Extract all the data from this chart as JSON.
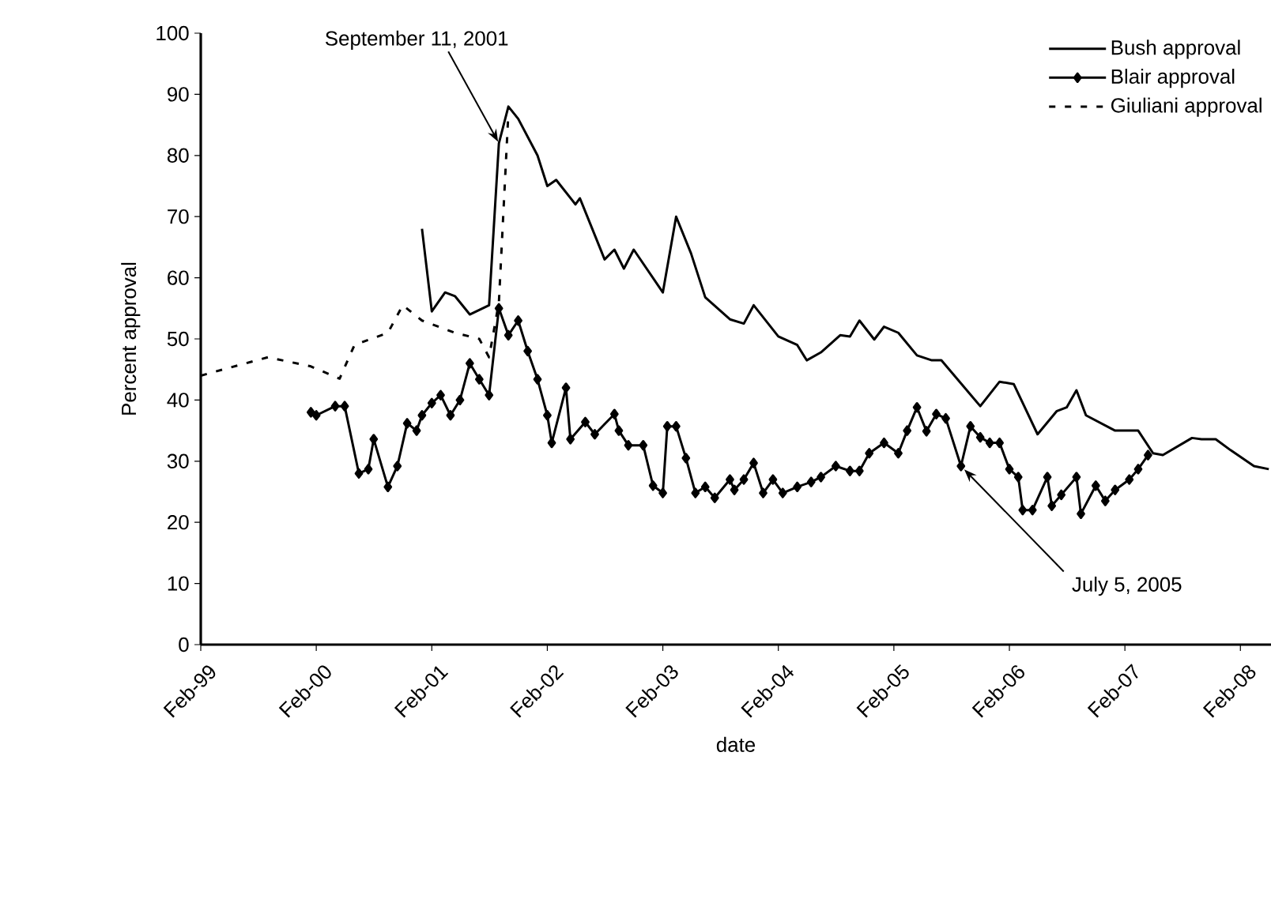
{
  "chart_data": {
    "type": "line",
    "xlabel": "date",
    "ylabel": "Percent approval",
    "xlim": [
      "1999-02-01",
      "2008-05-08"
    ],
    "ylim": [
      0,
      100
    ],
    "xticks": [
      {
        "value": "1999-02-01",
        "label": "Feb-99"
      },
      {
        "value": "2000-02-01",
        "label": "Feb-00"
      },
      {
        "value": "2001-02-01",
        "label": "Feb-01"
      },
      {
        "value": "2002-02-01",
        "label": "Feb-02"
      },
      {
        "value": "2003-02-01",
        "label": "Feb-03"
      },
      {
        "value": "2004-02-01",
        "label": "Feb-04"
      },
      {
        "value": "2005-02-01",
        "label": "Feb-05"
      },
      {
        "value": "2006-02-01",
        "label": "Feb-06"
      },
      {
        "value": "2007-02-01",
        "label": "Feb-07"
      },
      {
        "value": "2008-02-01",
        "label": "Feb-08"
      }
    ],
    "yticks": [
      0,
      10,
      20,
      30,
      40,
      50,
      60,
      70,
      80,
      90,
      100
    ],
    "legend": "top right",
    "series": [
      {
        "name": "Bush approval",
        "color": "#000000",
        "line_style": "solid",
        "marker": "none",
        "x": [
          "2001-01-01",
          "2001-02-01",
          "2001-03-15",
          "2001-04-15",
          "2001-06-01",
          "2001-08-01",
          "2001-09-01",
          "2001-10-01",
          "2001-11-01",
          "2002-01-01",
          "2002-02-01",
          "2002-03-01",
          "2002-05-01",
          "2002-05-15",
          "2002-08-01",
          "2002-09-01",
          "2002-10-01",
          "2002-11-01",
          "2003-02-01",
          "2003-03-15",
          "2003-05-01",
          "2003-06-15",
          "2003-09-01",
          "2003-10-15",
          "2003-11-15",
          "2004-02-01",
          "2004-04-01",
          "2004-05-01",
          "2004-06-15",
          "2004-08-15",
          "2004-09-15",
          "2004-10-15",
          "2004-12-01",
          "2005-01-01",
          "2005-02-15",
          "2005-04-15",
          "2005-06-01",
          "2005-07-01",
          "2005-11-01",
          "2006-01-01",
          "2006-02-15",
          "2006-05-01",
          "2006-07-01",
          "2006-08-01",
          "2006-09-01",
          "2006-10-01",
          "2007-01-01",
          "2007-03-15",
          "2007-05-01",
          "2007-06-01",
          "2007-09-01",
          "2007-10-01",
          "2007-11-15",
          "2008-01-01",
          "2008-03-15",
          "2008-05-01"
        ],
        "values": [
          68,
          54.5,
          57.6,
          57,
          54,
          55.5,
          82,
          88,
          86,
          80,
          75,
          76,
          72,
          73,
          63,
          64.6,
          61.5,
          64.6,
          57.6,
          70,
          64,
          56.8,
          53.2,
          52.5,
          55.5,
          50.4,
          49,
          46.5,
          47.8,
          50.6,
          50.4,
          53,
          49.9,
          52,
          51,
          47.3,
          46.5,
          46.5,
          39,
          43,
          42.6,
          34.4,
          38.2,
          38.8,
          41.6,
          37.5,
          35,
          35,
          31.3,
          31,
          33.8,
          33.6,
          33.6,
          31.8,
          29.2,
          28.7
        ]
      },
      {
        "name": "Blair approval",
        "color": "#000000",
        "line_style": "solid",
        "marker": "diamond",
        "x": [
          "2000-01-15",
          "2000-02-01",
          "2000-04-01",
          "2000-05-01",
          "2000-06-15",
          "2000-07-15",
          "2000-08-01",
          "2000-09-15",
          "2000-10-15",
          "2000-11-15",
          "2000-12-15",
          "2001-01-01",
          "2001-02-01",
          "2001-03-01",
          "2001-04-01",
          "2001-05-01",
          "2001-06-01",
          "2001-07-01",
          "2001-08-01",
          "2001-09-01",
          "2001-10-01",
          "2001-11-01",
          "2001-12-01",
          "2002-01-01",
          "2002-02-01",
          "2002-02-15",
          "2002-04-01",
          "2002-04-15",
          "2002-06-01",
          "2002-07-01",
          "2002-09-01",
          "2002-09-15",
          "2002-10-15",
          "2002-12-01",
          "2003-01-01",
          "2003-02-01",
          "2003-02-15",
          "2003-03-15",
          "2003-04-15",
          "2003-05-15",
          "2003-06-15",
          "2003-07-15",
          "2003-09-01",
          "2003-09-15",
          "2003-10-15",
          "2003-11-15",
          "2003-12-15",
          "2004-01-15",
          "2004-02-15",
          "2004-04-01",
          "2004-05-15",
          "2004-06-15",
          "2004-08-01",
          "2004-09-15",
          "2004-10-15",
          "2004-11-15",
          "2005-01-01",
          "2005-02-15",
          "2005-03-15",
          "2005-04-15",
          "2005-05-15",
          "2005-06-15",
          "2005-07-15",
          "2005-09-01",
          "2005-10-01",
          "2005-11-01",
          "2005-12-01",
          "2006-01-01",
          "2006-02-01",
          "2006-03-01",
          "2006-03-15",
          "2006-04-15",
          "2006-06-01",
          "2006-06-15",
          "2006-07-15",
          "2006-09-01",
          "2006-09-15",
          "2006-11-01",
          "2006-12-01",
          "2007-01-01",
          "2007-02-15",
          "2007-03-15",
          "2007-04-15"
        ],
        "values": [
          38,
          37.5,
          39,
          39,
          28,
          28.7,
          33.6,
          25.8,
          29.2,
          36.2,
          35,
          37.5,
          39.5,
          40.8,
          37.5,
          40,
          46,
          43.4,
          40.8,
          55,
          50.6,
          53,
          48,
          43.4,
          37.5,
          33,
          42,
          33.6,
          36.4,
          34.4,
          37.7,
          35,
          32.6,
          32.6,
          26,
          24.8,
          35.7,
          35.7,
          30.5,
          24.8,
          25.8,
          24,
          27,
          25.3,
          27,
          29.7,
          24.8,
          27,
          24.8,
          25.8,
          26.6,
          27.4,
          29.2,
          28.4,
          28.4,
          31.3,
          33,
          31.3,
          35,
          38.8,
          34.9,
          37.7,
          37,
          29.2,
          35.7,
          33.9,
          33,
          33,
          28.7,
          27.4,
          22,
          22,
          27.4,
          22.7,
          24.5,
          27.4,
          21.4,
          26,
          23.5,
          25.3,
          27,
          28.7,
          31
        ]
      },
      {
        "name": "Giuliani approval",
        "color": "#000000",
        "line_style": "dashed",
        "marker": "none",
        "x": [
          "1999-02-01",
          "1999-09-01",
          "2000-01-15",
          "2000-04-15",
          "2000-06-01",
          "2000-09-15",
          "2000-11-01",
          "2001-01-01",
          "2001-04-15",
          "2001-07-01",
          "2001-08-01",
          "2001-09-01",
          "2001-10-01"
        ],
        "values": [
          44,
          47,
          45.5,
          43.5,
          49,
          51,
          55.5,
          53,
          51,
          50,
          47,
          56,
          87
        ]
      }
    ],
    "annotations": [
      {
        "text": "September 11, 2001",
        "x": "2001-09-01",
        "y": 82
      },
      {
        "text": "July 5, 2005",
        "x": "2005-09-01",
        "y": 29.2
      }
    ]
  }
}
